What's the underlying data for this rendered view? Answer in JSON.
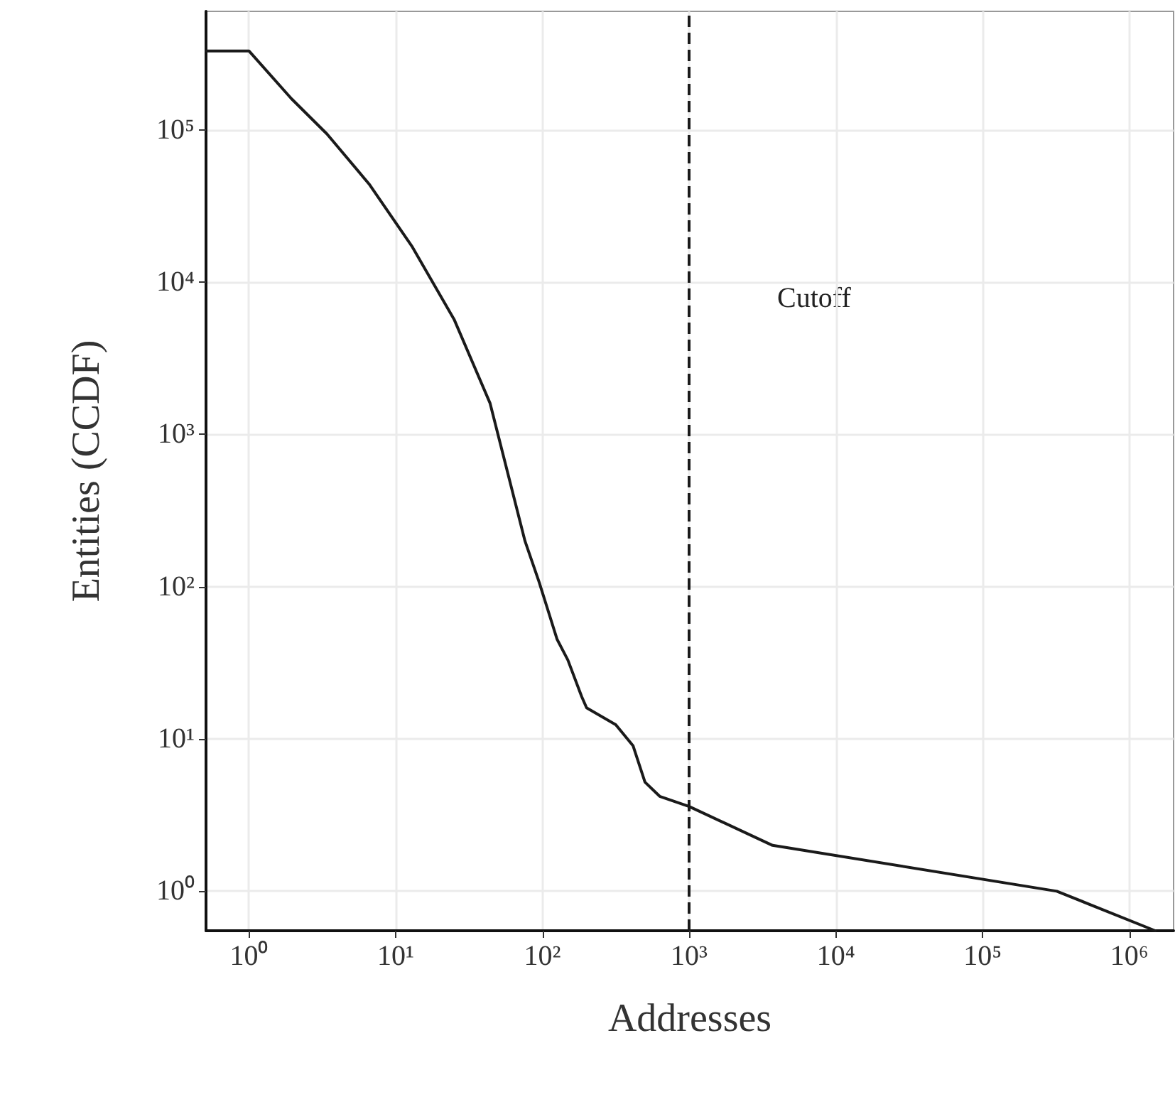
{
  "chart_data": {
    "type": "line",
    "xlabel": "Addresses",
    "ylabel": "Entities (CCDF)",
    "log": "xy",
    "grid": true,
    "marker": "none",
    "line_style": "solid",
    "x": [
      0.51,
      1,
      1.95,
      3.4,
      6.6,
      13,
      25,
      44,
      76,
      95,
      126,
      149,
      185,
      200,
      316,
      415,
      500,
      630,
      1000,
      3700,
      320000,
      1500000
    ],
    "series": [
      {
        "color": "#1a1a1a",
        "values": [
          330000,
          330000,
          160000,
          94000,
          44000,
          17000,
          5700,
          1600,
          200,
          107,
          45,
          33,
          19,
          16,
          12.4,
          9,
          5.2,
          4.2,
          3.6,
          2.0,
          1.0,
          0.55
        ]
      }
    ],
    "xlim": [
      0.51,
      2000000
    ],
    "ylim": [
      0.55,
      600000
    ],
    "xticks": [
      {
        "value": 1,
        "label": "10⁰"
      },
      {
        "value": 10,
        "label": "10¹"
      },
      {
        "value": 100,
        "label": "10²"
      },
      {
        "value": 1000,
        "label": "10³"
      },
      {
        "value": 10000,
        "label": "10⁴"
      },
      {
        "value": 100000,
        "label": "10⁵"
      },
      {
        "value": 1000000,
        "label": "10⁶"
      }
    ],
    "yticks": [
      {
        "value": 1,
        "label": "10⁰"
      },
      {
        "value": 10,
        "label": "10¹"
      },
      {
        "value": 100,
        "label": "10²"
      },
      {
        "value": 1000,
        "label": "10³"
      },
      {
        "value": 10000,
        "label": "10⁴"
      },
      {
        "value": 100000,
        "label": "10⁵"
      }
    ],
    "ref_lines": [
      {
        "axis": "x",
        "value": 1000,
        "line_style": "dashed",
        "color": "#1a1a1a"
      }
    ],
    "annotations": [
      "Cutoff"
    ]
  }
}
